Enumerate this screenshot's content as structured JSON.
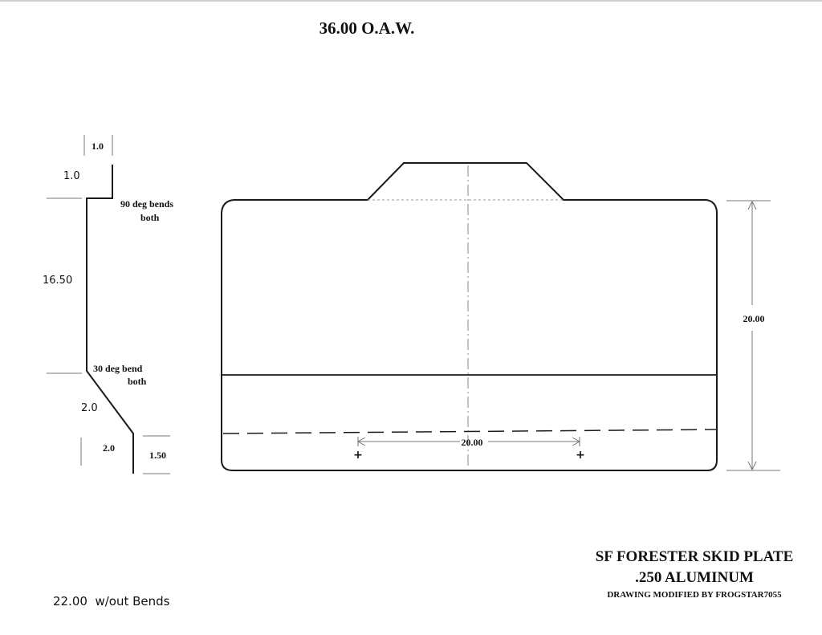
{
  "drawing": {
    "overall_width": "36.00 O.A.W.",
    "profile": {
      "dim_top_flange_width": "1.0",
      "dim_top_flange_height": "1.0",
      "note_90_line1": "90 deg bends",
      "note_90_line2": "both",
      "dim_main_length": "16.50",
      "note_30_line1": "30 deg bend",
      "note_30_line2": "both",
      "dim_angled_length": "2.0",
      "dim_lower_offset": "2.0",
      "dim_bottom_flange": "1.50"
    },
    "plate": {
      "dim_height": "20.00",
      "dim_hole_spacing": "20.00",
      "hole_marker": "+"
    },
    "title_block": {
      "line1": "SF FORESTER SKID PLATE",
      "line2": ".250 ALUMINUM",
      "line3": "DRAWING MODIFIED BY FROGSTAR7055"
    },
    "note_length_without_bends": "22.00  w/out Bends"
  }
}
